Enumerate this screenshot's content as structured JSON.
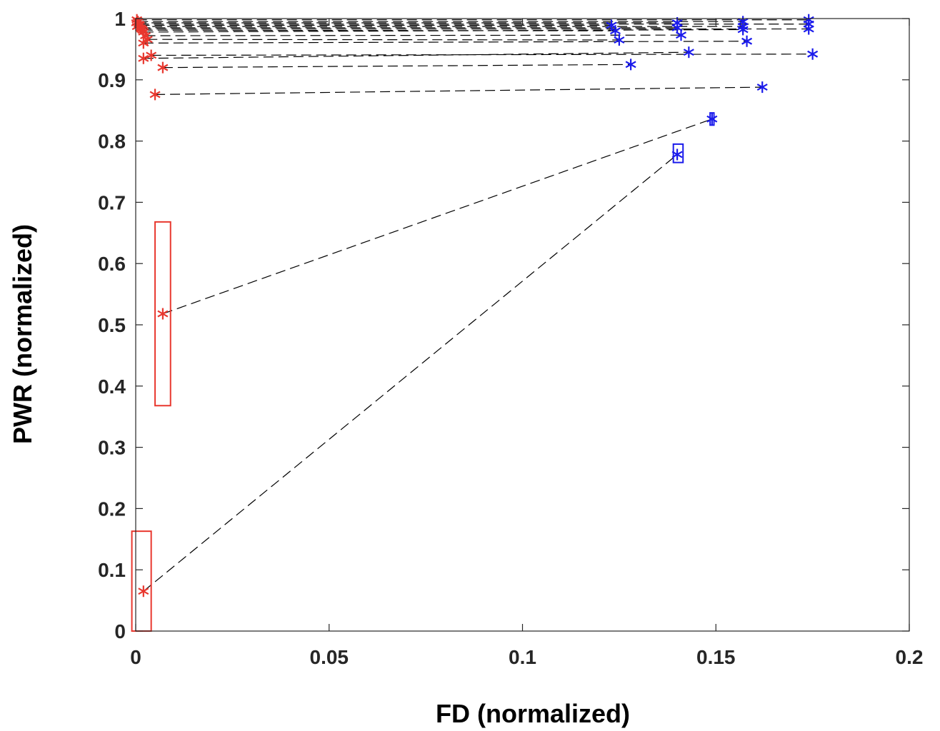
{
  "chart_data": {
    "type": "scatter",
    "title": "",
    "xlabel": "FD (normalized)",
    "ylabel": "PWR (normalized)",
    "xlim": [
      0,
      0.2
    ],
    "ylim": [
      0,
      1
    ],
    "xticks": [
      0,
      0.05,
      0.1,
      0.15,
      0.2
    ],
    "xtick_labels": [
      "0",
      "0.05",
      "0.1",
      "0.15",
      "0.2"
    ],
    "yticks": [
      0,
      0.1,
      0.2,
      0.3,
      0.4,
      0.5,
      0.6,
      0.7,
      0.8,
      0.9,
      1
    ],
    "ytick_labels": [
      "0",
      "0.1",
      "0.2",
      "0.3",
      "0.4",
      "0.5",
      "0.6",
      "0.7",
      "0.8",
      "0.9",
      "1"
    ],
    "grid": false,
    "colors": {
      "series_a": "#e8372e",
      "series_b": "#1a1aeb",
      "connector": "#000000",
      "axis": "#262626"
    },
    "series": [
      {
        "name": "red",
        "marker": "asterisk",
        "color": "#e8372e"
      },
      {
        "name": "blue",
        "marker": "asterisk",
        "color": "#1a1aeb"
      }
    ],
    "pairs": [
      {
        "red": [
          0.0003,
          0.998
        ],
        "blue": [
          0.174,
          0.998
        ]
      },
      {
        "red": [
          0.0006,
          0.995
        ],
        "blue": [
          0.157,
          0.995
        ]
      },
      {
        "red": [
          0.0002,
          0.993
        ],
        "blue": [
          0.14,
          0.993
        ]
      },
      {
        "red": [
          0.0008,
          0.991
        ],
        "blue": [
          0.174,
          0.991
        ]
      },
      {
        "red": [
          0.001,
          0.989
        ],
        "blue": [
          0.123,
          0.989
        ]
      },
      {
        "red": [
          0.0004,
          0.987
        ],
        "blue": [
          0.157,
          0.987
        ]
      },
      {
        "red": [
          0.0012,
          0.985
        ],
        "blue": [
          0.14,
          0.985
        ]
      },
      {
        "red": [
          0.0015,
          0.983
        ],
        "blue": [
          0.174,
          0.983
        ]
      },
      {
        "red": [
          0.0018,
          0.981
        ],
        "blue": [
          0.124,
          0.98
        ]
      },
      {
        "red": [
          0.002,
          0.978
        ],
        "blue": [
          0.157,
          0.982
        ]
      },
      {
        "red": [
          0.0025,
          0.972
        ],
        "blue": [
          0.141,
          0.973
        ]
      },
      {
        "red": [
          0.003,
          0.966
        ],
        "blue": [
          0.125,
          0.965
        ]
      },
      {
        "red": [
          0.002,
          0.96
        ],
        "blue": [
          0.158,
          0.963
        ]
      },
      {
        "red": [
          0.004,
          0.94
        ],
        "blue": [
          0.175,
          0.942
        ]
      },
      {
        "red": [
          0.002,
          0.935
        ],
        "blue": [
          0.143,
          0.945
        ]
      },
      {
        "red": [
          0.007,
          0.92
        ],
        "blue": [
          0.128,
          0.925
        ]
      },
      {
        "red": [
          0.005,
          0.876
        ],
        "blue": [
          0.162,
          0.888
        ]
      },
      {
        "red": [
          0.007,
          0.518
        ],
        "blue": [
          0.149,
          0.836
        ]
      },
      {
        "red": [
          0.002,
          0.065
        ],
        "blue": [
          0.14,
          0.778
        ]
      }
    ],
    "range_boxes": [
      {
        "series": "red",
        "x_range": [
          0.005,
          0.009
        ],
        "y_range": [
          0.368,
          0.668
        ]
      },
      {
        "series": "red",
        "x_range": [
          -0.001,
          0.004
        ],
        "y_range": [
          0,
          0.163
        ]
      },
      {
        "series": "blue",
        "x_range": [
          0.139,
          0.1415
        ],
        "y_range": [
          0.765,
          0.795
        ]
      },
      {
        "series": "blue",
        "x_range": [
          0.1485,
          0.1495
        ],
        "y_range": [
          0.826,
          0.846
        ]
      }
    ]
  }
}
